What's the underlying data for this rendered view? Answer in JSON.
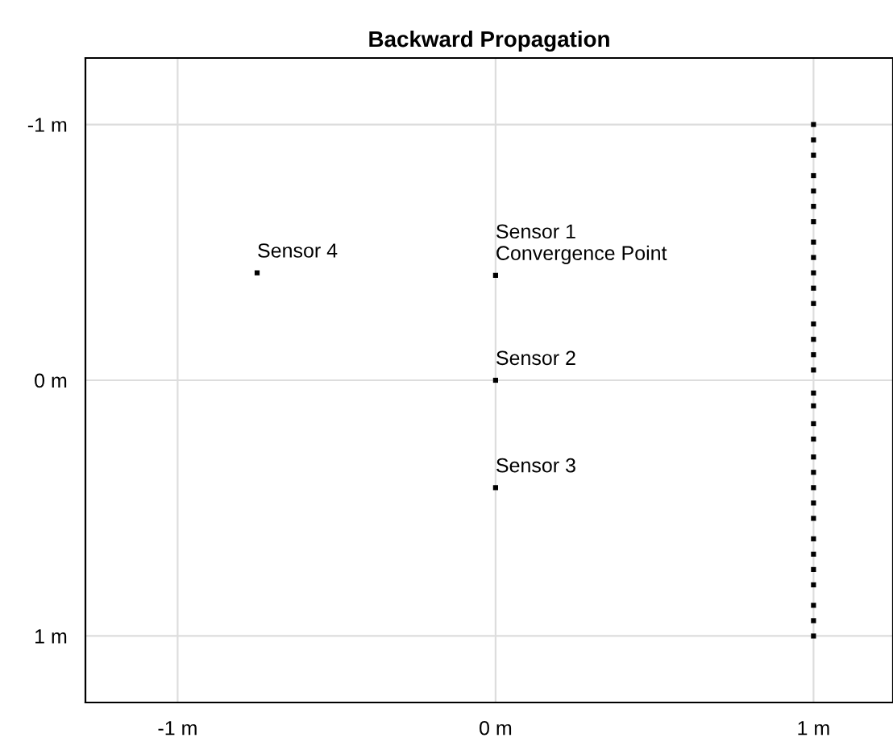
{
  "chart_data": {
    "type": "scatter",
    "title": "Backward Propagation",
    "series": [
      {
        "name": "Sensor 1\nConvergence Point",
        "color": "#000000",
        "x": [
          0
        ],
        "values": [
          -0.41
        ]
      },
      {
        "name": "Sensor 2",
        "color": "#000000",
        "x": [
          0
        ],
        "values": [
          0
        ]
      },
      {
        "name": "Sensor 3",
        "color": "#000000",
        "x": [
          0
        ],
        "values": [
          0.42
        ]
      },
      {
        "name": "Sensor 4",
        "color": "#000000",
        "x": [
          -0.75
        ],
        "values": [
          -0.42
        ]
      },
      {
        "color": "#000000",
        "x": [
          1,
          1,
          1,
          1,
          1,
          1,
          1,
          1,
          1,
          1,
          1,
          1,
          1,
          1,
          1,
          1,
          1,
          1,
          1,
          1,
          1,
          1,
          1,
          1,
          1,
          1,
          1,
          1,
          1,
          1,
          1,
          1
        ],
        "values": [
          -1.0,
          -0.94,
          -0.88,
          -0.8,
          -0.74,
          -0.68,
          -0.62,
          -0.54,
          -0.48,
          -0.42,
          -0.36,
          -0.3,
          -0.22,
          -0.16,
          -0.1,
          -0.04,
          0.05,
          0.1,
          0.17,
          0.23,
          0.3,
          0.36,
          0.42,
          0.48,
          0.54,
          0.62,
          0.68,
          0.74,
          0.8,
          0.88,
          0.94,
          1.0
        ]
      }
    ],
    "marker": "square",
    "grid": true,
    "xlim": [
      -1.29,
      1.25
    ],
    "ylim": [
      1.26,
      -1.26
    ],
    "xticks": [
      {
        "value": -1,
        "label": "-1 m"
      },
      {
        "value": 0,
        "label": "0 m"
      },
      {
        "value": 1,
        "label": "1 m"
      }
    ],
    "yticks": [
      {
        "value": -1,
        "label": "-1 m"
      },
      {
        "value": 0,
        "label": "0 m"
      },
      {
        "value": 1,
        "label": "1 m"
      }
    ]
  }
}
